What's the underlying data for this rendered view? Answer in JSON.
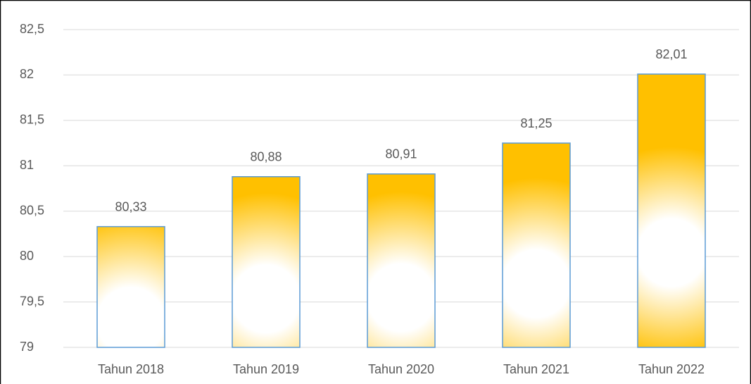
{
  "chart_data": {
    "type": "bar",
    "categories": [
      "Tahun 2018",
      "Tahun 2019",
      "Tahun 2020",
      "Tahun 2021",
      "Tahun 2022"
    ],
    "values": [
      80.33,
      80.88,
      80.91,
      81.25,
      82.01
    ],
    "value_labels": [
      "80,33",
      "80,88",
      "80,91",
      "81,25",
      "82,01"
    ],
    "color": "#FFC000",
    "edge_color": "#5B9BD5",
    "ylim": [
      79,
      82.5
    ],
    "yticks": [
      79,
      {
        "value": 79.5,
        "label": "79,5"
      },
      80,
      {
        "value": 80.5,
        "label": "80,5"
      },
      81,
      {
        "value": 81.5,
        "label": "81,5"
      },
      82,
      {
        "value": 82.5,
        "label": "82,5"
      }
    ],
    "grid": true
  }
}
